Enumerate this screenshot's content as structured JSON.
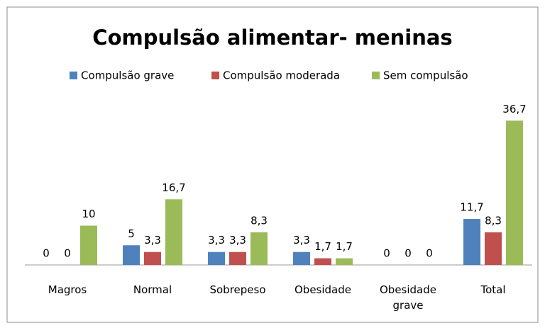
{
  "chart_data": {
    "type": "bar",
    "title": "Compulsão alimentar- meninas",
    "categories": [
      "Magros",
      "Normal",
      "Sobrepeso",
      "Obesidade",
      "Obesidade grave",
      "Total"
    ],
    "series": [
      {
        "name": "Compulsão grave",
        "color": "#4f81bd",
        "values": [
          0,
          5,
          3.3,
          3.3,
          0,
          11.7
        ],
        "value_labels": [
          "0",
          "5",
          "3,3",
          "3,3",
          "0",
          "11,7"
        ]
      },
      {
        "name": "Compulsão moderada",
        "color": "#c0504d",
        "values": [
          0,
          3.3,
          3.3,
          1.7,
          0,
          8.3
        ],
        "value_labels": [
          "0",
          "3,3",
          "3,3",
          "1,7",
          "0",
          "8,3"
        ]
      },
      {
        "name": "Sem compulsão",
        "color": "#9bbb59",
        "values": [
          10,
          16.7,
          8.3,
          1.7,
          0,
          36.7
        ],
        "value_labels": [
          "10",
          "16,7",
          "8,3",
          "1,7",
          "0",
          "36,7"
        ]
      }
    ],
    "ylim": [
      0,
      40
    ],
    "legend": "top"
  }
}
